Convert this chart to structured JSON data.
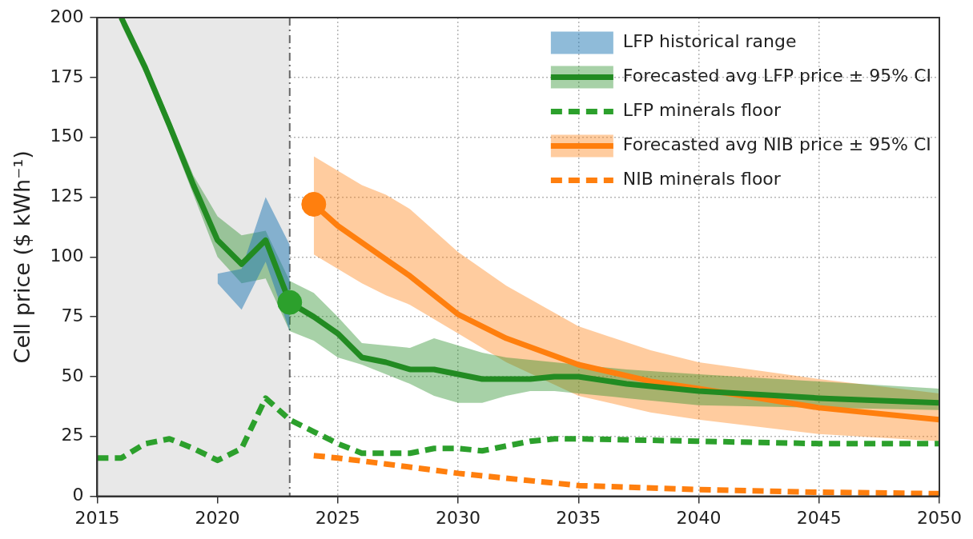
{
  "chart_data": {
    "type": "line",
    "ylabel": "Cell price ($ kWh⁻¹)",
    "xlim": [
      2015,
      2050
    ],
    "xticks": [
      2015,
      2020,
      2025,
      2030,
      2035,
      2040,
      2045,
      2050
    ],
    "ylim": [
      0,
      200
    ],
    "yticks": [
      0,
      25,
      50,
      75,
      100,
      125,
      150,
      175,
      200
    ],
    "grid": true,
    "legend": "top right",
    "bands": [
      {
        "axis": "x",
        "from": 2015,
        "to": 2023,
        "color": "#e8e8e8"
      }
    ],
    "ref_lines": [
      {
        "axis": "x",
        "value": 2023,
        "color": "#666666",
        "line_style": "dashdot"
      }
    ],
    "series": [
      {
        "name": "LFP historical range",
        "type": "area",
        "color": "#1f77b4",
        "x": [
          2020,
          2021,
          2022,
          2023
        ],
        "values": [
          null,
          null,
          null,
          null
        ],
        "lower": [
          89,
          78,
          98,
          69
        ],
        "upper": [
          93,
          95,
          125,
          105
        ]
      },
      {
        "name": "Forecasted avg LFP price ± 95% CI",
        "color": "#228b22",
        "line_style": "solid",
        "x": [
          2016,
          2017,
          2018,
          2019,
          2020,
          2021,
          2022,
          2023,
          2024,
          2025,
          2026,
          2027,
          2028,
          2029,
          2030,
          2031,
          2032,
          2033,
          2034,
          2035,
          2037,
          2040,
          2045,
          2050
        ],
        "values": [
          200,
          179,
          155,
          130,
          107,
          97,
          107,
          81,
          75,
          68,
          58,
          56,
          53,
          53,
          51,
          49,
          49,
          49,
          50,
          50,
          47,
          44,
          41,
          39
        ],
        "upper": [
          200,
          181,
          158,
          134,
          117,
          109,
          111,
          90,
          85,
          75,
          64,
          63,
          62,
          66,
          63,
          60,
          58,
          57,
          56,
          55,
          53,
          51,
          48,
          45
        ],
        "lower": [
          197,
          176,
          152,
          126,
          100,
          89,
          91,
          69,
          65,
          58,
          55,
          51,
          47,
          42,
          39,
          39,
          42,
          44,
          44,
          43,
          41,
          38,
          37,
          36
        ]
      },
      {
        "name": "LFP minerals floor",
        "color": "#2ca02c",
        "line_style": "dashed",
        "x": [
          2015,
          2016,
          2017,
          2018,
          2019,
          2020,
          2021,
          2022,
          2023,
          2024,
          2025,
          2026,
          2027,
          2028,
          2029,
          2030,
          2031,
          2032,
          2033,
          2034,
          2035,
          2040,
          2045,
          2050
        ],
        "values": [
          16,
          16,
          22,
          24,
          20,
          15,
          20,
          41,
          32,
          27,
          22,
          18,
          18,
          18,
          20,
          20,
          19,
          21,
          23,
          24,
          24,
          23,
          22,
          22
        ]
      },
      {
        "name": "Forecasted avg NIB price ± 95% CI",
        "color": "#ff7f0e",
        "line_style": "solid",
        "x": [
          2024,
          2025,
          2026,
          2027,
          2028,
          2030,
          2032,
          2035,
          2038,
          2040,
          2045,
          2050
        ],
        "values": [
          122,
          113,
          106,
          99,
          92,
          76,
          66,
          55,
          48,
          45,
          37,
          32
        ],
        "upper": [
          142,
          136,
          130,
          126,
          120,
          102,
          88,
          71,
          61,
          56,
          49,
          43
        ],
        "lower": [
          101,
          95,
          89,
          84,
          80,
          68,
          56,
          42,
          35,
          32,
          26,
          23
        ]
      },
      {
        "name": "NIB minerals floor",
        "color": "#ff7f0e",
        "line_style": "dashed",
        "x": [
          2024,
          2025,
          2027,
          2030,
          2035,
          2040,
          2045,
          2050
        ],
        "values": [
          17,
          16,
          13.5,
          9.6,
          4.5,
          2.8,
          1.7,
          1.1
        ]
      },
      {
        "type": "scatter",
        "color": "#2ca02c",
        "marker": "circle",
        "x": [
          2023
        ],
        "values": [
          81
        ]
      },
      {
        "type": "scatter",
        "color": "#ff7f0e",
        "marker": "circle",
        "x": [
          2024
        ],
        "values": [
          122
        ]
      }
    ]
  }
}
